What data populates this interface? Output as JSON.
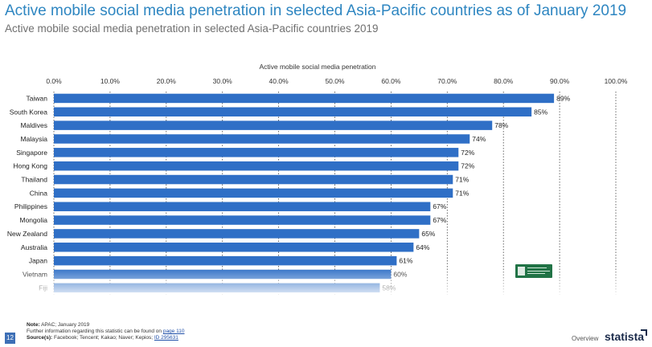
{
  "title": "Active mobile social media penetration in selected Asia-Pacific countries as of January 2019",
  "subtitle": "Active mobile social media penetration in selected Asia-Pacific countries 2019",
  "chart_data": {
    "type": "bar",
    "orientation": "horizontal",
    "axis_title": "Active mobile social media penetration",
    "xlim": [
      0,
      100
    ],
    "ticks": [
      "0.0%",
      "10.0%",
      "20.0%",
      "30.0%",
      "40.0%",
      "50.0%",
      "60.0%",
      "70.0%",
      "80.0%",
      "90.0%",
      "100.0%"
    ],
    "tick_values": [
      0,
      10,
      20,
      30,
      40,
      50,
      60,
      70,
      80,
      90,
      100
    ],
    "grid": "vertical-dotted",
    "bar_color": "#2f6fc6",
    "categories": [
      "Taiwan",
      "South Korea",
      "Maldives",
      "Malaysia",
      "Singapore",
      "Hong Kong",
      "Thailand",
      "China",
      "Philippines",
      "Mongolia",
      "New Zealand",
      "Australia",
      "Japan",
      "Vietnam",
      "Fiji"
    ],
    "values": [
      89,
      85,
      78,
      74,
      72,
      72,
      71,
      71,
      67,
      67,
      65,
      64,
      61,
      60,
      58
    ],
    "labels": [
      "89%",
      "85%",
      "78%",
      "74%",
      "72%",
      "72%",
      "71%",
      "71%",
      "67%",
      "67%",
      "65%",
      "64%",
      "61%",
      "60%",
      "58%"
    ]
  },
  "footer": {
    "note_label": "Note:",
    "note_text": "APAC; January 2019",
    "further_text": "Further information regarding this statistic can be found on",
    "page_link": "page 110",
    "sources_label": "Source(s):",
    "sources_text": "Facebook; Tencent; Kakao; Naver; Kepios;",
    "id_link": "ID 295631",
    "page_number": "12",
    "overview": "Overview",
    "brand": "statista"
  }
}
